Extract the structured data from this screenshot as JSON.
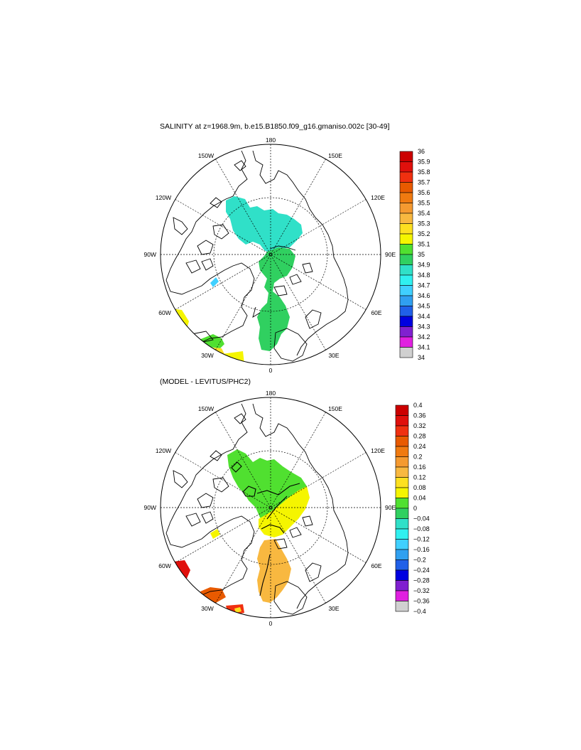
{
  "panels": [
    {
      "title": "SALINITY at z=1968.9m, b.e15.B1850.f09_g16.gmaniso.002c [30-49]",
      "lon_labels": {
        "n": "180",
        "s": "0",
        "w": "90W",
        "e": "90E",
        "nw": "150W",
        "ne": "150E",
        "wnw": "120W",
        "ene": "120E",
        "wsw": "60W",
        "ese": "60E",
        "sw": "30W",
        "se": "30E"
      },
      "colorbar": {
        "labels": [
          "36",
          "35.9",
          "35.8",
          "35.7",
          "35.6",
          "35.5",
          "35.4",
          "35.3",
          "35.2",
          "35.1",
          "35",
          "34.9",
          "34.8",
          "34.7",
          "34.6",
          "34.5",
          "34.4",
          "34.3",
          "34.2",
          "34.1",
          "34"
        ],
        "colors": [
          "#cc0000",
          "#e0100c",
          "#f03010",
          "#e85a00",
          "#f07a10",
          "#f59a30",
          "#f8b840",
          "#fde020",
          "#f5f500",
          "#50e030",
          "#30d060",
          "#30e0c8",
          "#30f0f0",
          "#40d0ff",
          "#30a0f0",
          "#2060e8",
          "#0000e0",
          "#8020d0",
          "#e020e0",
          "#d0d0d0",
          "#707070"
        ]
      }
    },
    {
      "title": "(MODEL - LEVITUS/PHC2)",
      "lon_labels": {
        "n": "180",
        "s": "0",
        "w": "90W",
        "e": "90E",
        "nw": "150W",
        "ne": "150E",
        "wnw": "120W",
        "ene": "120E",
        "wsw": "60W",
        "ese": "60E",
        "sw": "30W",
        "se": "30E"
      },
      "colorbar": {
        "labels": [
          "0.4",
          "0.36",
          "0.32",
          "0.28",
          "0.24",
          "0.2",
          "0.16",
          "0.12",
          "0.08",
          "0.04",
          "0",
          "−0.04",
          "−0.08",
          "−0.12",
          "−0.16",
          "−0.2",
          "−0.24",
          "−0.28",
          "−0.32",
          "−0.36",
          "−0.4"
        ],
        "colors": [
          "#cc0000",
          "#e0100c",
          "#f03010",
          "#e85a00",
          "#f07a10",
          "#f59a30",
          "#f8b840",
          "#fde020",
          "#f5f500",
          "#50e030",
          "#30d060",
          "#30e0c8",
          "#30f0f0",
          "#40d0ff",
          "#30a0f0",
          "#2060e8",
          "#0000e0",
          "#8020d0",
          "#e020e0",
          "#d0d0d0",
          "#707070"
        ]
      }
    }
  ]
}
